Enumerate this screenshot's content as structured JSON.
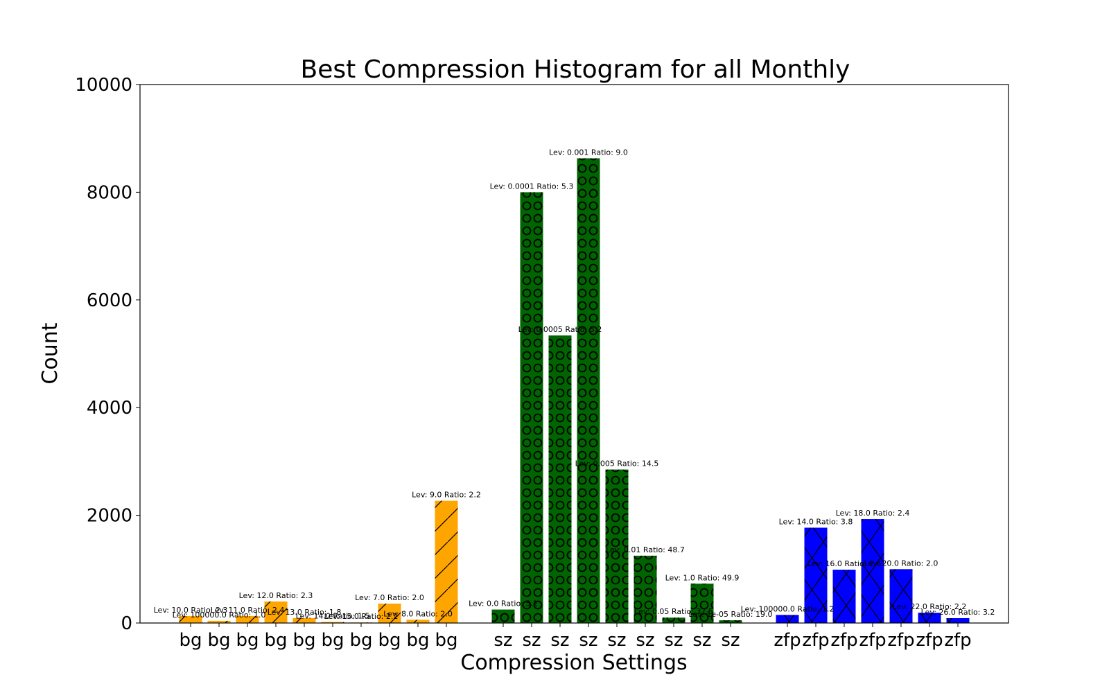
{
  "chart_data": {
    "type": "bar",
    "title": "Best Compression Histogram for all Monthly",
    "xlabel": "Compression Settings",
    "ylabel": "Count",
    "ylim": [
      0,
      10000
    ],
    "yticks": [
      0,
      2000,
      4000,
      6000,
      8000,
      10000
    ],
    "grid": false,
    "groups": [
      {
        "name": "bg",
        "color": "#ffa500",
        "hatch": "slash",
        "values": [
          130,
          40,
          130,
          400,
          90,
          20,
          10,
          360,
          60,
          2270
        ],
        "labels": [
          "Lev: 10.0 Ratio: 2.3",
          "Lev: 100000.0 Ratio: 1.0",
          "Lev: 11.0 Ratio: 2.4",
          "Lev: 12.0 Ratio: 2.3",
          "Lev: 13.0 Ratio: 1.8",
          "Lev: 14.0 Ratio: 1.5",
          "Lev: 15.0 Ratio: 2.2",
          "Lev: 7.0 Ratio: 2.0",
          "Lev: 8.0 Ratio: 2.0",
          "Lev: 9.0 Ratio: 2.2"
        ]
      },
      {
        "name": "sz",
        "color": "#006400",
        "hatch": "circle",
        "values": [
          250,
          8000,
          5340,
          8630,
          2850,
          1250,
          100,
          730,
          50
        ],
        "labels": [
          "Lev: 0.0 Ratio: 5.2",
          "Lev: 0.0001 Ratio: 5.3",
          "Lev: 0.0005 Ratio: 5.2",
          "Lev: 0.001 Ratio: 9.0",
          "Lev: 0.005 Ratio: 14.5",
          "Lev: 0.01 Ratio: 48.7",
          "Lev: 0.05 Ratio: 37.5",
          "Lev: 1.0 Ratio: 49.9",
          "Lev: 1e-05 Ratio: 19.0"
        ]
      },
      {
        "name": "zfp",
        "color": "#0000ff",
        "hatch": "cross",
        "values": [
          150,
          1770,
          990,
          1930,
          1000,
          190,
          90
        ],
        "labels": [
          "Lev: 100000.0 Ratio: 1.2",
          "Lev: 14.0 Ratio: 3.8",
          "Lev: 16.0 Ratio: 2.6",
          "Lev: 18.0 Ratio: 2.4",
          "Lev: 20.0 Ratio: 2.0",
          "Lev: 22.0 Ratio: 2.2",
          "Lev: 26.0 Ratio: 3.2"
        ]
      }
    ]
  }
}
